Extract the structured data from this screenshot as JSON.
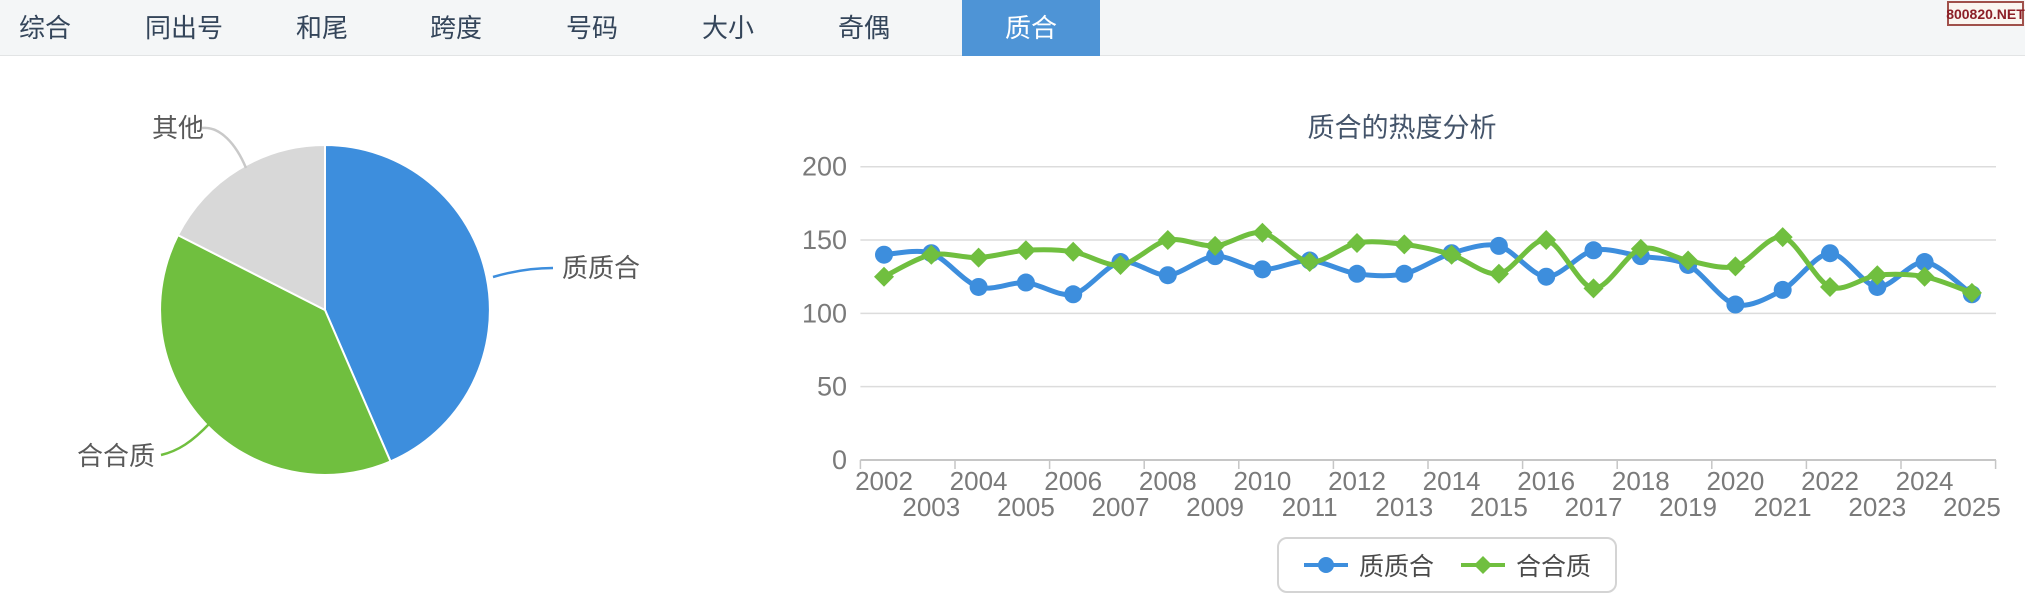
{
  "watermark": {
    "text": "800820.NET"
  },
  "tab_bar": {
    "items": [
      {
        "label": "综合",
        "active": false
      },
      {
        "label": "同出号",
        "active": false
      },
      {
        "label": "和尾",
        "active": false
      },
      {
        "label": "跨度",
        "active": false
      },
      {
        "label": "号码",
        "active": false
      },
      {
        "label": "大小",
        "active": false
      },
      {
        "label": "奇偶",
        "active": false
      },
      {
        "label": "质合",
        "active": true
      }
    ]
  },
  "colors": {
    "series_blue": "#3d8edd",
    "series_green": "#70bf3f",
    "pie_gray": "#d8d8d8",
    "active_tab": "#4e94d6",
    "axis_text": "#7a7a7a",
    "grid_line": "#dcdcdc",
    "title_text": "#44546a"
  },
  "chart_data": [
    {
      "type": "pie",
      "title": "",
      "slices": [
        {
          "label": "质质合",
          "percent": 43.5,
          "color": "#3d8edd"
        },
        {
          "label": "合合质",
          "percent": 39.0,
          "color": "#70bf3f"
        },
        {
          "label": "其他",
          "percent": 17.5,
          "color": "#d8d8d8"
        }
      ],
      "start_angle_deg": 0,
      "direction": "clockwise"
    },
    {
      "type": "line",
      "title": "质合的热度分析",
      "x": [
        2002,
        2003,
        2004,
        2005,
        2006,
        2007,
        2008,
        2009,
        2010,
        2011,
        2012,
        2013,
        2014,
        2015,
        2016,
        2017,
        2018,
        2019,
        2020,
        2021,
        2022,
        2023,
        2024,
        2025
      ],
      "series": [
        {
          "name": "质质合",
          "color": "#3d8edd",
          "marker": "circle",
          "values": [
            140,
            141,
            118,
            121,
            113,
            135,
            126,
            139,
            130,
            136,
            127,
            127,
            141,
            146,
            125,
            143,
            139,
            133,
            106,
            116,
            141,
            118,
            135,
            113
          ]
        },
        {
          "name": "合合质",
          "color": "#70bf3f",
          "marker": "diamond",
          "values": [
            125,
            140,
            138,
            143,
            142,
            133,
            150,
            146,
            155,
            135,
            148,
            147,
            140,
            127,
            150,
            117,
            144,
            136,
            132,
            152,
            118,
            126,
            125,
            114
          ]
        }
      ],
      "ylim": [
        0,
        200
      ],
      "yticks": [
        0,
        50,
        100,
        150,
        200
      ],
      "grid": true,
      "legend_position": "bottom"
    }
  ]
}
